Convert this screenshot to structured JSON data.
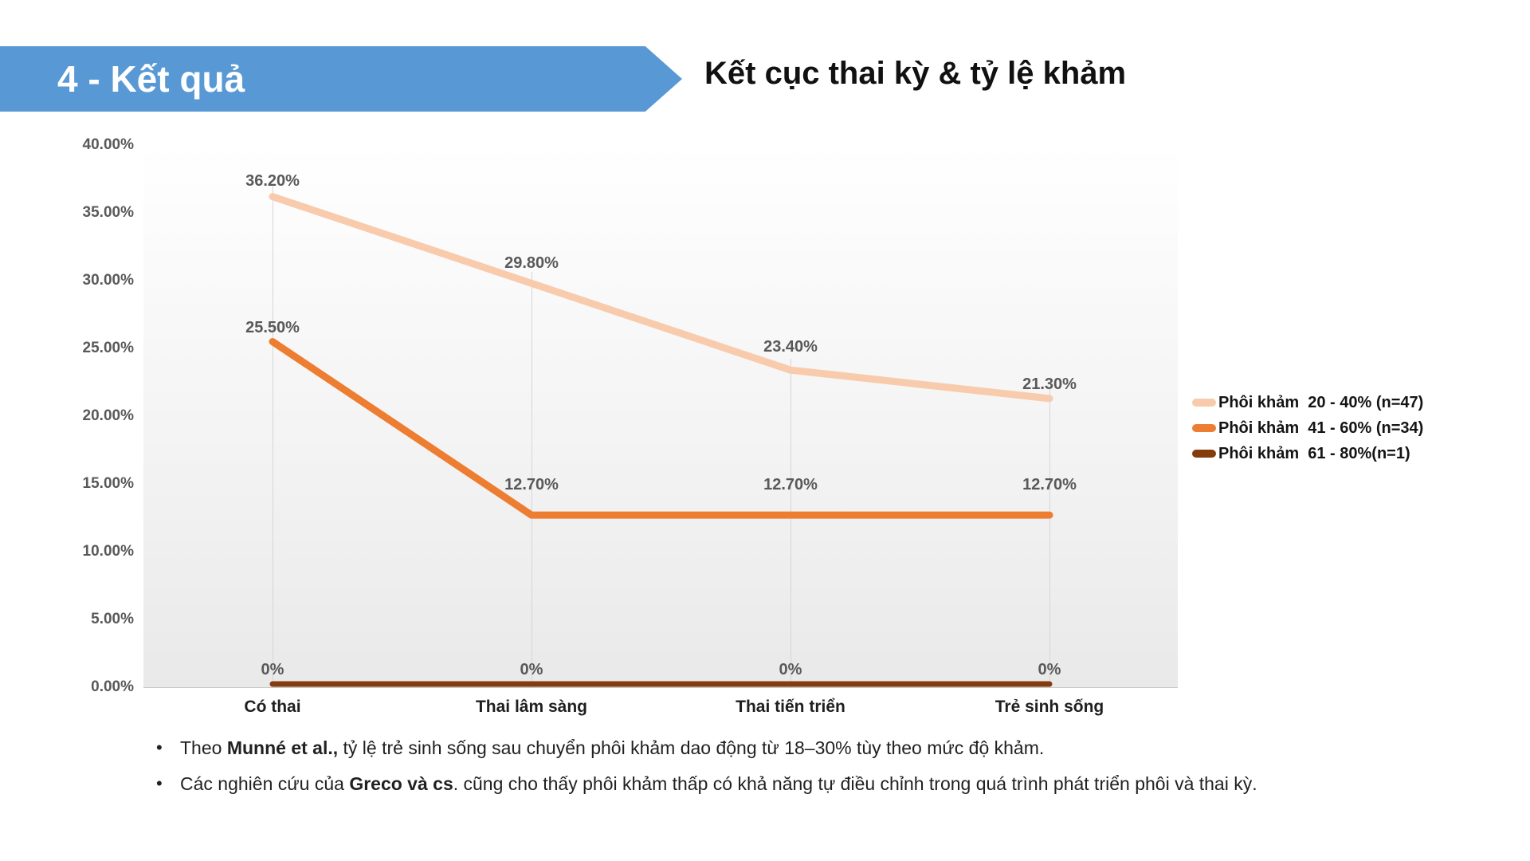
{
  "header": {
    "section_label": "4 - Kết quả",
    "slide_title": "Kết cục thai kỳ & tỷ lệ khảm",
    "banner_color": "#5899D5"
  },
  "chart_data": {
    "type": "line",
    "categories": [
      "Có thai",
      "Thai lâm sàng",
      "Thai tiến triển",
      "Trẻ sinh sống"
    ],
    "series": [
      {
        "name": "Phôi khảm  20 - 40% (n=47)",
        "color": "#F8CBAD",
        "values": [
          36.2,
          29.8,
          23.4,
          21.3
        ],
        "labels": [
          "36.20%",
          "29.80%",
          "23.40%",
          "21.30%"
        ]
      },
      {
        "name": "Phôi khảm  41 - 60% (n=34)",
        "color": "#ED7D31",
        "values": [
          25.5,
          12.7,
          12.7,
          12.7
        ],
        "labels": [
          "25.50%",
          "12.70%",
          "12.70%",
          "12.70%"
        ]
      },
      {
        "name": "Phôi khảm  61 - 80%(n=1)",
        "color": "#843C0C",
        "values": [
          0,
          0,
          0,
          0
        ],
        "labels": [
          "0%",
          "0%",
          "0%",
          "0%"
        ]
      }
    ],
    "y_ticks": [
      "40.00%",
      "35.00%",
      "30.00%",
      "25.00%",
      "20.00%",
      "15.00%",
      "10.00%",
      "5.00%",
      "0.00%"
    ],
    "ylim": [
      0,
      40
    ],
    "xlabel": "",
    "ylabel": "",
    "title": "",
    "grid": "category drop lines only",
    "legend_position": "right"
  },
  "bullets": [
    {
      "segments": [
        {
          "text": "Theo ",
          "bold": false
        },
        {
          "text": "Munné et al.,",
          "bold": true
        },
        {
          "text": " tỷ lệ trẻ sinh sống sau chuyển phôi khảm dao động từ 18–30% tùy theo mức độ khảm.",
          "bold": false
        }
      ]
    },
    {
      "segments": [
        {
          "text": "Các nghiên cứu của ",
          "bold": false
        },
        {
          "text": "Greco và cs",
          "bold": true
        },
        {
          "text": ". cũng cho thấy phôi khảm thấp có khả năng tự điều chỉnh trong quá trình phát triển phôi và thai kỳ.",
          "bold": false
        }
      ]
    }
  ]
}
